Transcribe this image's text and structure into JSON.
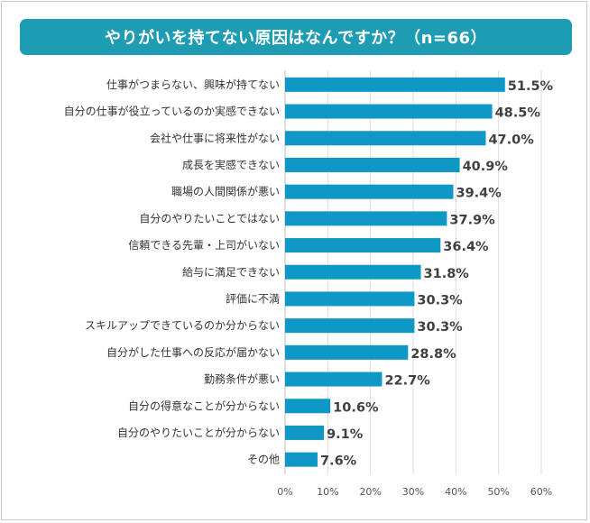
{
  "chart_data": {
    "type": "bar",
    "orientation": "horizontal",
    "title": "やりがいを持てない原因はなんですか？（n=66）",
    "categories": [
      "仕事がつまらない、興味が持てない",
      "自分の仕事が役立っているのか実感できない",
      "会社や仕事に将来性がない",
      "成長を実感できない",
      "職場の人間関係が悪い",
      "自分のやりたいことではない",
      "信頼できる先輩・上司がいない",
      "給与に満足できない",
      "評価に不満",
      "スキルアップできているのか分からない",
      "自分がした仕事への反応が届かない",
      "勤務条件が悪い",
      "自分の得意なことが分からない",
      "自分のやりたいことが分からない",
      "その他"
    ],
    "values": [
      51.5,
      48.5,
      47.0,
      40.9,
      39.4,
      37.9,
      36.4,
      31.8,
      30.3,
      30.3,
      28.8,
      22.7,
      10.6,
      9.1,
      7.6
    ],
    "value_labels": [
      "51.5%",
      "48.5%",
      "47.0%",
      "40.9%",
      "39.4%",
      "37.9%",
      "36.4%",
      "31.8%",
      "30.3%",
      "30.3%",
      "28.8%",
      "22.7%",
      "10.6%",
      "9.1%",
      "7.6%"
    ],
    "xlim": [
      0,
      60
    ],
    "ticks": [
      0,
      10,
      20,
      30,
      40,
      50,
      60
    ],
    "tick_labels": [
      "0%",
      "10%",
      "20%",
      "30%",
      "40%",
      "50%",
      "60%"
    ],
    "grid": true,
    "bar_color": "#0f98c6",
    "title_bg_color": "#1d9cb4"
  }
}
